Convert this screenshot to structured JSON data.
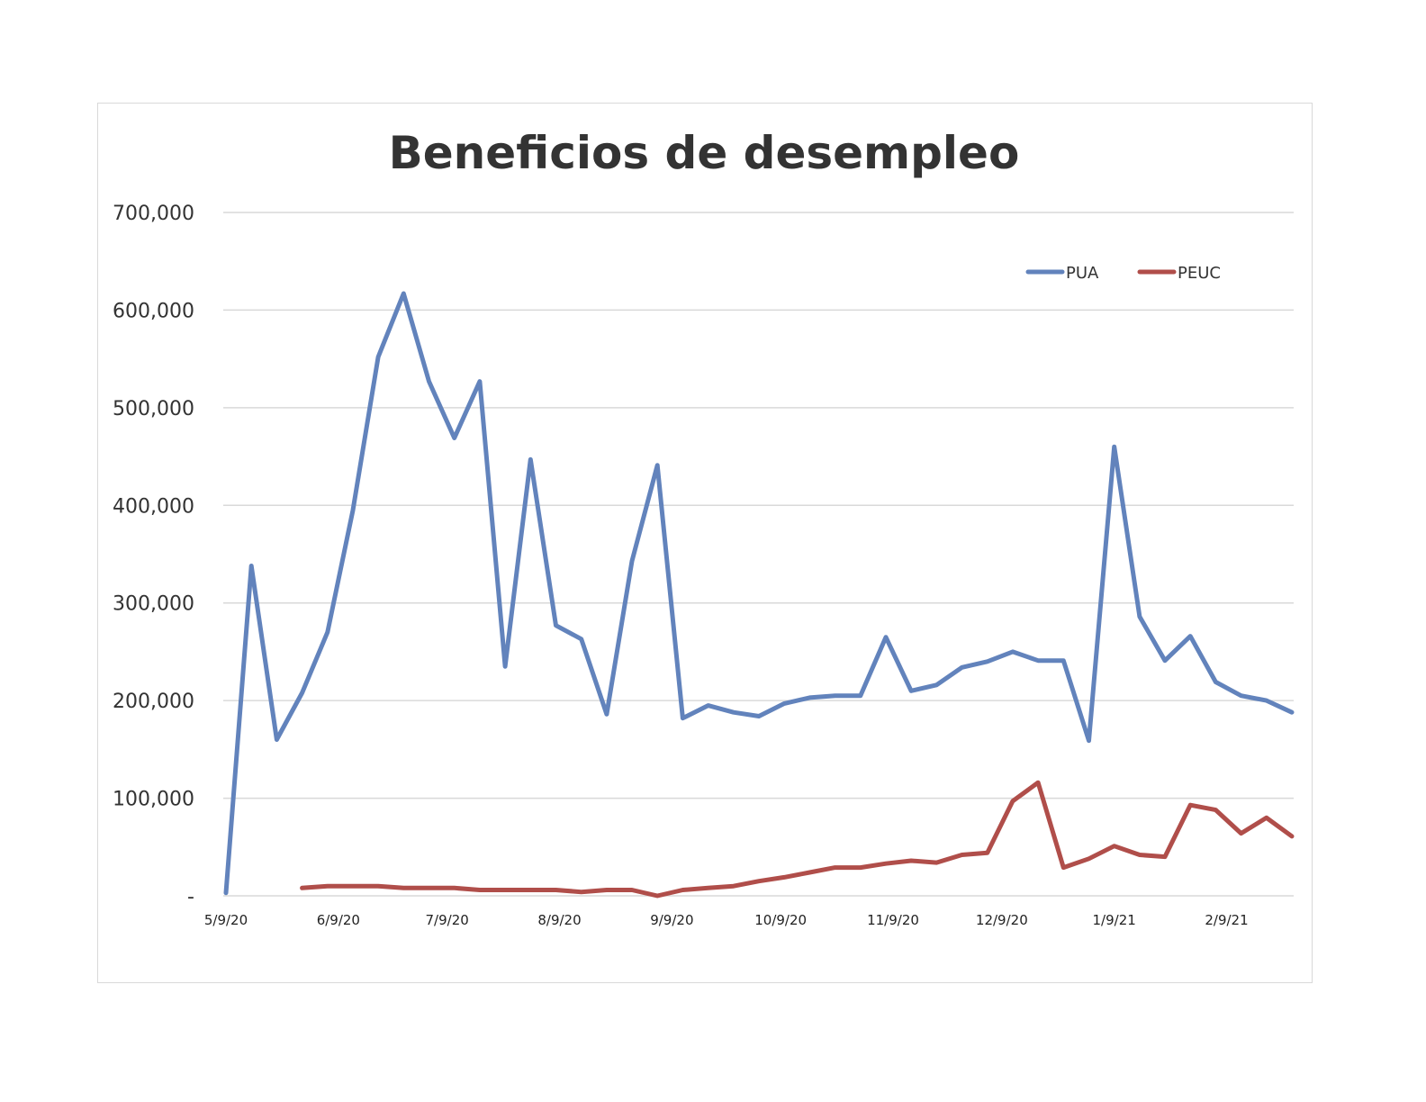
{
  "chart_data": {
    "type": "line",
    "title": "Beneficios de desempleo",
    "xlabel": "",
    "ylabel": "",
    "ylim": [
      0,
      700000
    ],
    "yticks": [
      0,
      100000,
      200000,
      300000,
      400000,
      500000,
      600000,
      700000
    ],
    "ytick_labels": [
      "-",
      "100,000",
      "200,000",
      "300,000",
      "400,000",
      "500,000",
      "600,000",
      "700,000"
    ],
    "xtick_labels": [
      "5/9/20",
      "6/9/20",
      "7/9/20",
      "8/9/20",
      "9/9/20",
      "10/9/20",
      "11/9/20",
      "12/9/20",
      "1/9/21",
      "2/9/21"
    ],
    "xtick_dates": [
      "2020-05-09",
      "2020-06-09",
      "2020-07-09",
      "2020-08-09",
      "2020-09-09",
      "2020-10-09",
      "2020-11-09",
      "2020-12-09",
      "2021-01-09",
      "2021-02-09"
    ],
    "grid": true,
    "legend_position": "top-right",
    "x": [
      "2020-05-09",
      "2020-05-16",
      "2020-05-23",
      "2020-05-30",
      "2020-06-06",
      "2020-06-13",
      "2020-06-20",
      "2020-06-27",
      "2020-07-04",
      "2020-07-11",
      "2020-07-18",
      "2020-07-25",
      "2020-08-01",
      "2020-08-08",
      "2020-08-15",
      "2020-08-22",
      "2020-08-29",
      "2020-09-05",
      "2020-09-12",
      "2020-09-19",
      "2020-09-26",
      "2020-10-03",
      "2020-10-10",
      "2020-10-17",
      "2020-10-24",
      "2020-10-31",
      "2020-11-07",
      "2020-11-14",
      "2020-11-21",
      "2020-11-28",
      "2020-12-05",
      "2020-12-12",
      "2020-12-19",
      "2020-12-26",
      "2021-01-02",
      "2021-01-09",
      "2021-01-16",
      "2021-01-23",
      "2021-01-30",
      "2021-02-06",
      "2021-02-13",
      "2021-02-20",
      "2021-02-27"
    ],
    "series": [
      {
        "name": "PUA",
        "color": "#6283bc",
        "values": [
          3000,
          338000,
          160000,
          208000,
          270000,
          395000,
          552000,
          617000,
          527000,
          469000,
          527000,
          235000,
          447000,
          277000,
          263000,
          186000,
          343000,
          441000,
          182000,
          195000,
          188000,
          184000,
          197000,
          203000,
          205000,
          205000,
          265000,
          210000,
          216000,
          234000,
          240000,
          250000,
          241000,
          241000,
          159000,
          460000,
          286000,
          241000,
          266000,
          219000,
          205000,
          200000,
          188000
        ]
      },
      {
        "name": "PEUC",
        "color": "#b04e4a",
        "values": [
          null,
          null,
          null,
          8000,
          10000,
          10000,
          10000,
          8000,
          8000,
          8000,
          6000,
          6000,
          6000,
          6000,
          4000,
          6000,
          6000,
          0,
          6000,
          8000,
          10000,
          15000,
          19000,
          24000,
          29000,
          29000,
          33000,
          36000,
          34000,
          42000,
          44000,
          97000,
          116000,
          29000,
          38000,
          51000,
          42000,
          40000,
          93000,
          88000,
          64000,
          80000,
          61000
        ]
      }
    ]
  }
}
